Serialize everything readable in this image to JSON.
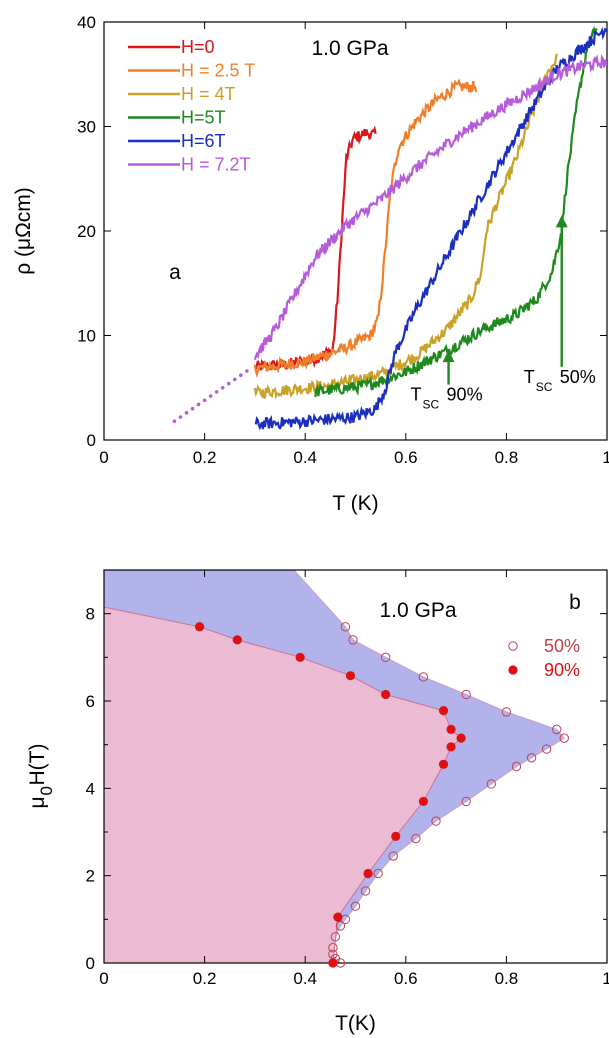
{
  "chart_data": [
    {
      "panel": "a",
      "type": "line",
      "annotation": "1.0 GPa",
      "panel_label": "a",
      "xlabel": "T (K)",
      "ylabel": "ρ (μΩcm)",
      "xlim": [
        0,
        1
      ],
      "ylim": [
        0,
        40
      ],
      "xticks": [
        "0",
        "0.2",
        "0.4",
        "0.6",
        "0.8",
        "1"
      ],
      "yticks": [
        "0",
        "10",
        "20",
        "30",
        "40"
      ],
      "legend_position": "top-left",
      "series": [
        {
          "name": "H=0",
          "color": "#d7191c",
          "points": [
            [
              0.3,
              7.0
            ],
            [
              0.36,
              7.2
            ],
            [
              0.42,
              7.8
            ],
            [
              0.455,
              8.6
            ],
            [
              0.465,
              14
            ],
            [
              0.475,
              22
            ],
            [
              0.482,
              27
            ],
            [
              0.495,
              28.8
            ],
            [
              0.52,
              29.4
            ],
            [
              0.54,
              29.2
            ]
          ]
        },
        {
          "name": "H = 2.5 T",
          "color": "#f07f2a",
          "points": [
            [
              0.3,
              6.8
            ],
            [
              0.4,
              7.5
            ],
            [
              0.48,
              8.8
            ],
            [
              0.53,
              10.0
            ],
            [
              0.545,
              11.5
            ],
            [
              0.555,
              16
            ],
            [
              0.57,
              24
            ],
            [
              0.585,
              28
            ],
            [
              0.62,
              30.5
            ],
            [
              0.66,
              32.5
            ],
            [
              0.7,
              33.8
            ],
            [
              0.74,
              33.8
            ]
          ]
        },
        {
          "name": "H = 4T",
          "color": "#c9a227",
          "points": [
            [
              0.3,
              4.5
            ],
            [
              0.45,
              5.2
            ],
            [
              0.55,
              6.3
            ],
            [
              0.62,
              8.0
            ],
            [
              0.68,
              10.5
            ],
            [
              0.73,
              13.5
            ],
            [
              0.75,
              16
            ],
            [
              0.76,
              20
            ],
            [
              0.78,
              22.5
            ],
            [
              0.82,
              27
            ],
            [
              0.85,
              31
            ],
            [
              0.88,
              35
            ],
            [
              0.9,
              36.5
            ]
          ]
        },
        {
          "name": "H=5T",
          "color": "#1e8a1e",
          "points": [
            [
              0.42,
              4.6
            ],
            [
              0.52,
              5.2
            ],
            [
              0.6,
              6.5
            ],
            [
              0.68,
              8.5
            ],
            [
              0.75,
              10.5
            ],
            [
              0.82,
              12.0
            ],
            [
              0.86,
              13.5
            ],
            [
              0.89,
              16.0
            ],
            [
              0.91,
              20
            ],
            [
              0.92,
              25
            ],
            [
              0.94,
              32
            ],
            [
              0.96,
              37.5
            ],
            [
              0.98,
              39.5
            ]
          ]
        },
        {
          "name": "H=6T",
          "color": "#1b2fbf",
          "points": [
            [
              0.3,
              1.5
            ],
            [
              0.4,
              1.8
            ],
            [
              0.5,
              2.2
            ],
            [
              0.54,
              3.0
            ],
            [
              0.56,
              5
            ],
            [
              0.58,
              8.5
            ],
            [
              0.62,
              12.5
            ],
            [
              0.68,
              17.5
            ],
            [
              0.74,
              22.5
            ],
            [
              0.8,
              27.5
            ],
            [
              0.86,
              32.5
            ],
            [
              0.9,
              35.5
            ],
            [
              0.95,
              37.5
            ],
            [
              1.0,
              39.5
            ]
          ]
        },
        {
          "name": "H = 7.2T",
          "color": "#b65bd9",
          "points": [
            [
              0.3,
              8.0
            ],
            [
              0.34,
              10.5
            ],
            [
              0.38,
              14.0
            ],
            [
              0.42,
              17.5
            ],
            [
              0.48,
              20.5
            ],
            [
              0.55,
              23.0
            ],
            [
              0.62,
              26.0
            ],
            [
              0.7,
              29.0
            ],
            [
              0.78,
              31.5
            ],
            [
              0.85,
              33.5
            ],
            [
              0.9,
              35.0
            ],
            [
              0.95,
              35.8
            ],
            [
              1.0,
              36.2
            ]
          ]
        },
        {
          "name": "",
          "color": "#b65bd9",
          "style": "dotted",
          "points": [
            [
              0.14,
              1.8
            ],
            [
              0.17,
              2.8
            ],
            [
              0.2,
              3.8
            ],
            [
              0.23,
              4.8
            ],
            [
              0.26,
              5.8
            ],
            [
              0.29,
              6.8
            ]
          ]
        }
      ],
      "arrows": [
        {
          "label_main": "T",
          "label_sub": "SC",
          "label_pct": "90%",
          "x": 0.685,
          "y_from": 5.3,
          "y_to": 8.6
        },
        {
          "label_main": "T",
          "label_sub": "SC",
          "label_pct": "50%",
          "x": 0.91,
          "y_from": 7.0,
          "y_to": 21.5
        }
      ],
      "arrow_color": "#1e8a1e"
    },
    {
      "panel": "b",
      "type": "scatter",
      "annotation": "1.0 GPa",
      "panel_label": "b",
      "xlabel": "T(K)",
      "ylabel_main": "μ",
      "ylabel_sub": "0",
      "ylabel_rest": "H(T)",
      "xlim": [
        0,
        1
      ],
      "ylim": [
        0,
        9
      ],
      "xticks": [
        "0",
        "0.2",
        "0.4",
        "0.6",
        "0.8",
        "1"
      ],
      "yticks": [
        "0",
        "2",
        "4",
        "6",
        "8"
      ],
      "legend_position": "top-right",
      "fill_50_color": "#b3b3ec",
      "fill_90_color": "#ebbad3",
      "series": [
        {
          "name": "50%",
          "marker": "open-circle",
          "color": "#c04050",
          "points": [
            [
              0.47,
              0.0
            ],
            [
              0.46,
              0.1
            ],
            [
              0.455,
              0.2
            ],
            [
              0.455,
              0.35
            ],
            [
              0.46,
              0.6
            ],
            [
              0.47,
              0.85
            ],
            [
              0.48,
              1.0
            ],
            [
              0.5,
              1.3
            ],
            [
              0.52,
              1.65
            ],
            [
              0.545,
              2.05
            ],
            [
              0.575,
              2.45
            ],
            [
              0.62,
              2.85
            ],
            [
              0.66,
              3.25
            ],
            [
              0.72,
              3.7
            ],
            [
              0.77,
              4.1
            ],
            [
              0.82,
              4.5
            ],
            [
              0.85,
              4.7
            ],
            [
              0.88,
              4.9
            ],
            [
              0.915,
              5.15
            ],
            [
              0.9,
              5.35
            ],
            [
              0.8,
              5.75
            ],
            [
              0.72,
              6.15
            ],
            [
              0.635,
              6.55
            ],
            [
              0.56,
              7.0
            ],
            [
              0.495,
              7.4
            ],
            [
              0.48,
              7.7
            ]
          ]
        },
        {
          "name": "90%",
          "marker": "filled-circle",
          "color": "#e01010",
          "points": [
            [
              0.455,
              0.0
            ],
            [
              0.465,
              1.05
            ],
            [
              0.525,
              2.05
            ],
            [
              0.58,
              2.9
            ],
            [
              0.635,
              3.7
            ],
            [
              0.675,
              4.55
            ],
            [
              0.69,
              4.95
            ],
            [
              0.71,
              5.15
            ],
            [
              0.69,
              5.35
            ],
            [
              0.675,
              5.78
            ],
            [
              0.56,
              6.15
            ],
            [
              0.49,
              6.58
            ],
            [
              0.39,
              7.0
            ],
            [
              0.265,
              7.4
            ],
            [
              0.19,
              7.7
            ]
          ]
        }
      ]
    }
  ]
}
